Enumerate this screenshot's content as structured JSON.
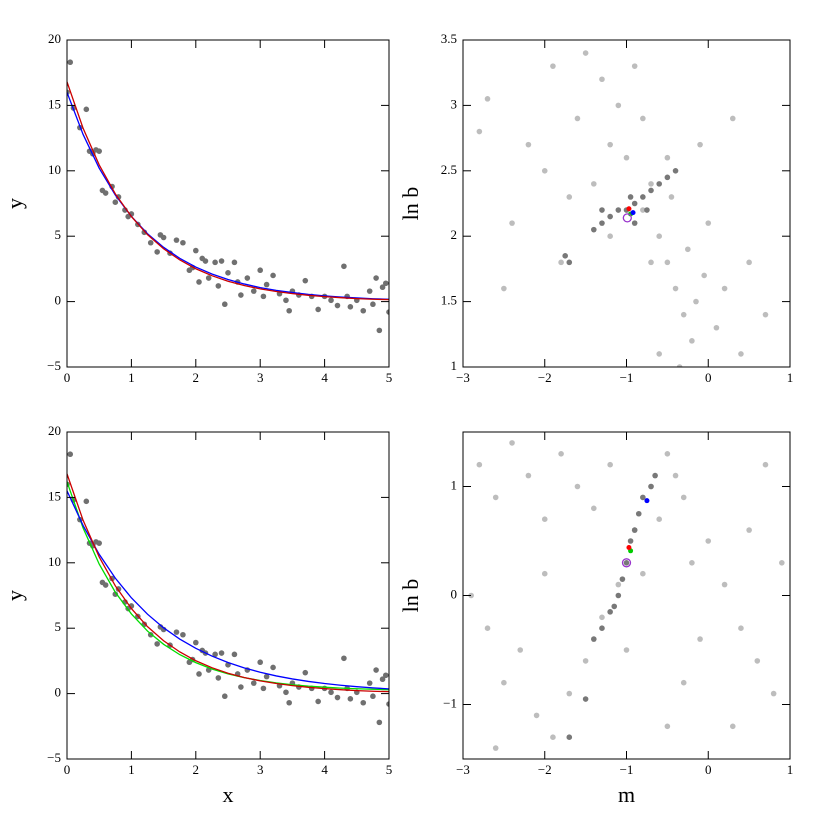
{
  "chart_data": [
    {
      "type": "scatter",
      "ylabel": "y",
      "xlim": [
        0,
        5
      ],
      "ylim": [
        -5,
        20
      ],
      "xticks": [
        0,
        1,
        2,
        3,
        4,
        5
      ],
      "yticks": [
        {
          "value": -5,
          "label": "−5"
        },
        0,
        5,
        10,
        15,
        20
      ],
      "series": [
        {
          "kind": "points",
          "color": "#707070",
          "x": [
            0.0,
            0.05,
            0.1,
            0.2,
            0.3,
            0.35,
            0.4,
            0.45,
            0.5,
            0.55,
            0.6,
            0.7,
            0.75,
            0.8,
            0.9,
            0.95,
            1.0,
            1.1,
            1.2,
            1.3,
            1.4,
            1.45,
            1.5,
            1.6,
            1.7,
            1.8,
            1.9,
            1.95,
            2.0,
            2.05,
            2.1,
            2.15,
            2.2,
            2.3,
            2.35,
            2.4,
            2.45,
            2.5,
            2.6,
            2.65,
            2.7,
            2.8,
            2.9,
            3.0,
            3.05,
            3.1,
            3.2,
            3.3,
            3.4,
            3.45,
            3.5,
            3.6,
            3.7,
            3.8,
            3.9,
            4.0,
            4.1,
            4.2,
            4.3,
            4.35,
            4.4,
            4.5,
            4.6,
            4.7,
            4.75,
            4.8,
            4.85,
            4.9,
            4.95,
            5.0
          ],
          "values": [
            16.0,
            18.3,
            14.8,
            13.3,
            14.7,
            11.5,
            11.3,
            11.6,
            11.5,
            8.5,
            8.3,
            8.8,
            7.6,
            8.0,
            7.0,
            6.5,
            6.7,
            5.9,
            5.3,
            4.5,
            3.8,
            5.1,
            4.9,
            3.7,
            4.7,
            4.5,
            2.4,
            2.6,
            3.9,
            1.5,
            3.3,
            3.1,
            1.8,
            3.0,
            1.2,
            3.1,
            -0.2,
            2.2,
            3.0,
            1.5,
            0.5,
            1.8,
            0.8,
            2.4,
            0.4,
            1.3,
            2.0,
            0.6,
            0.1,
            -0.7,
            0.8,
            0.5,
            1.6,
            0.4,
            -0.6,
            0.4,
            0.1,
            -0.3,
            2.7,
            0.4,
            -0.4,
            0.1,
            -0.7,
            0.8,
            -0.2,
            1.8,
            -2.2,
            1.1,
            1.4,
            -0.8
          ]
        },
        {
          "kind": "line",
          "color": "#0000ff",
          "x": [
            0,
            0.25,
            0.5,
            0.75,
            1,
            1.25,
            1.5,
            1.75,
            2,
            2.25,
            2.5,
            2.75,
            3,
            3.25,
            3.5,
            3.75,
            4,
            4.25,
            4.5,
            4.75,
            5
          ],
          "values": [
            16.0,
            12.78,
            10.2,
            8.15,
            6.51,
            5.19,
            4.15,
            3.31,
            2.64,
            2.11,
            1.69,
            1.35,
            1.07,
            0.86,
            0.69,
            0.55,
            0.44,
            0.35,
            0.28,
            0.22,
            0.18
          ]
        },
        {
          "kind": "line",
          "color": "#cc0000",
          "x": [
            0,
            0.25,
            0.5,
            0.75,
            1,
            1.25,
            1.5,
            1.75,
            2,
            2.25,
            2.5,
            2.75,
            3,
            3.25,
            3.5,
            3.75,
            4,
            4.25,
            4.5,
            4.75,
            5
          ],
          "values": [
            16.8,
            13.25,
            10.45,
            8.24,
            6.5,
            5.12,
            4.04,
            3.19,
            2.51,
            1.98,
            1.56,
            1.23,
            0.97,
            0.77,
            0.61,
            0.48,
            0.38,
            0.3,
            0.23,
            0.18,
            0.15
          ]
        }
      ]
    },
    {
      "type": "scatter",
      "ylabel": "ln b",
      "xlim": [
        -3,
        1
      ],
      "ylim": [
        1,
        3.5
      ],
      "xticks": [
        {
          "value": -3,
          "label": "−3"
        },
        {
          "value": -2,
          "label": "−2"
        },
        {
          "value": -1,
          "label": "−1"
        },
        0,
        1
      ],
      "yticks": [
        1,
        1.5,
        2,
        2.5,
        3,
        3.5
      ],
      "series": [
        {
          "kind": "points",
          "color": "#bdbdbd",
          "x": [
            -2.8,
            -2.7,
            -2.4,
            -2.2,
            -2.0,
            -1.9,
            -1.8,
            -1.6,
            -1.5,
            -1.4,
            -1.3,
            -1.2,
            -1.1,
            -1.0,
            -0.9,
            -0.8,
            -0.7,
            -0.6,
            -0.5,
            -0.45,
            -0.4,
            -0.3,
            -0.25,
            -0.2,
            -0.15,
            -0.1,
            -0.05,
            0.0,
            0.1,
            0.2,
            0.3,
            0.4,
            0.5,
            0.7,
            -0.6,
            -1.2,
            -0.8,
            -0.7,
            -0.5,
            -2.5,
            -1.7,
            -0.35
          ],
          "values": [
            2.8,
            3.05,
            2.1,
            2.7,
            2.5,
            3.3,
            1.8,
            2.9,
            3.4,
            2.4,
            3.2,
            2.7,
            3.0,
            2.6,
            3.3,
            2.9,
            2.4,
            2.0,
            1.8,
            2.3,
            1.6,
            1.4,
            1.9,
            1.2,
            1.5,
            2.7,
            1.7,
            2.1,
            1.3,
            1.6,
            2.9,
            1.1,
            1.8,
            1.4,
            1.1,
            2.0,
            2.2,
            1.8,
            2.6,
            1.6,
            2.3,
            1.0
          ]
        },
        {
          "kind": "points",
          "color": "#787878",
          "x": [
            -1.4,
            -1.3,
            -1.2,
            -1.1,
            -0.9,
            -0.8,
            -0.7,
            -0.6,
            -0.5,
            -0.4,
            -1.75,
            -1.7,
            -0.9,
            -1.0,
            -0.95,
            -0.75,
            -1.3
          ],
          "values": [
            2.05,
            2.1,
            2.15,
            2.2,
            2.25,
            2.3,
            2.35,
            2.4,
            2.45,
            2.5,
            1.85,
            1.8,
            2.1,
            2.2,
            2.3,
            2.2,
            2.2
          ]
        },
        {
          "kind": "points",
          "color": "#00cc00",
          "size": 5,
          "x": [
            -0.95
          ],
          "values": [
            2.17
          ]
        },
        {
          "kind": "points",
          "color": "#0000ff",
          "size": 5,
          "x": [
            -0.92
          ],
          "values": [
            2.18
          ]
        },
        {
          "kind": "points",
          "color": "#ff0000",
          "size": 5,
          "x": [
            -0.97
          ],
          "values": [
            2.21
          ]
        },
        {
          "kind": "points",
          "color": "#9933cc",
          "marker": "open-circle",
          "size": 8,
          "x": [
            -0.99
          ],
          "values": [
            2.14
          ]
        }
      ]
    },
    {
      "type": "scatter",
      "xlabel": "x",
      "ylabel": "y",
      "xlim": [
        0,
        5
      ],
      "ylim": [
        -5,
        20
      ],
      "xticks": [
        0,
        1,
        2,
        3,
        4,
        5
      ],
      "yticks": [
        {
          "value": -5,
          "label": "−5"
        },
        0,
        5,
        10,
        15,
        20
      ],
      "series": [
        {
          "kind": "points",
          "color": "#707070",
          "x": [
            0.0,
            0.05,
            0.1,
            0.2,
            0.3,
            0.35,
            0.4,
            0.45,
            0.5,
            0.55,
            0.6,
            0.7,
            0.75,
            0.8,
            0.9,
            0.95,
            1.0,
            1.1,
            1.2,
            1.3,
            1.4,
            1.45,
            1.5,
            1.6,
            1.7,
            1.8,
            1.9,
            1.95,
            2.0,
            2.05,
            2.1,
            2.15,
            2.2,
            2.3,
            2.35,
            2.4,
            2.45,
            2.5,
            2.6,
            2.65,
            2.7,
            2.8,
            2.9,
            3.0,
            3.05,
            3.1,
            3.2,
            3.3,
            3.4,
            3.45,
            3.5,
            3.6,
            3.7,
            3.8,
            3.9,
            4.0,
            4.1,
            4.2,
            4.3,
            4.35,
            4.4,
            4.5,
            4.6,
            4.7,
            4.75,
            4.8,
            4.85,
            4.9,
            4.95,
            5.0
          ],
          "values": [
            16.0,
            18.3,
            14.8,
            13.3,
            14.7,
            11.5,
            11.3,
            11.6,
            11.5,
            8.5,
            8.3,
            8.8,
            7.6,
            8.0,
            7.0,
            6.5,
            6.7,
            5.9,
            5.3,
            4.5,
            3.8,
            5.1,
            4.9,
            3.7,
            4.7,
            4.5,
            2.4,
            2.6,
            3.9,
            1.5,
            3.3,
            3.1,
            1.8,
            3.0,
            1.2,
            3.1,
            -0.2,
            2.2,
            3.0,
            1.5,
            0.5,
            1.8,
            0.8,
            2.4,
            0.4,
            1.3,
            2.0,
            0.6,
            0.1,
            -0.7,
            0.8,
            0.5,
            1.6,
            0.4,
            -0.6,
            0.4,
            0.1,
            -0.3,
            2.7,
            0.4,
            -0.4,
            0.1,
            -0.7,
            0.8,
            -0.2,
            1.8,
            -2.2,
            1.1,
            1.4,
            -0.8
          ]
        },
        {
          "kind": "line",
          "color": "#00dd00",
          "x": [
            0,
            0.25,
            0.5,
            0.75,
            1,
            1.25,
            1.5,
            1.75,
            2,
            2.25,
            2.5,
            2.75,
            3,
            3.25,
            3.5,
            3.75,
            4,
            4.25,
            4.5,
            4.75,
            5
          ],
          "values": [
            16.2,
            12.66,
            9.9,
            7.75,
            6.09,
            4.78,
            3.77,
            2.98,
            2.37,
            1.88,
            1.51,
            1.22,
            1.0,
            0.82,
            0.68,
            0.57,
            0.49,
            0.42,
            0.37,
            0.33,
            0.3
          ]
        },
        {
          "kind": "line",
          "color": "#0000ff",
          "x": [
            0,
            0.25,
            0.5,
            0.75,
            1,
            1.25,
            1.5,
            1.75,
            2,
            2.25,
            2.5,
            2.75,
            3,
            3.25,
            3.5,
            3.75,
            4,
            4.25,
            4.5,
            4.75,
            5
          ],
          "values": [
            15.5,
            12.85,
            10.65,
            8.83,
            7.32,
            6.07,
            5.03,
            4.17,
            3.46,
            2.87,
            2.38,
            1.97,
            1.63,
            1.35,
            1.12,
            0.93,
            0.77,
            0.64,
            0.53,
            0.44,
            0.36
          ]
        },
        {
          "kind": "line",
          "color": "#cc0000",
          "x": [
            0,
            0.25,
            0.5,
            0.75,
            1,
            1.25,
            1.5,
            1.75,
            2,
            2.25,
            2.5,
            2.75,
            3,
            3.25,
            3.5,
            3.75,
            4,
            4.25,
            4.5,
            4.75,
            5
          ],
          "values": [
            16.8,
            13.25,
            10.45,
            8.24,
            6.5,
            5.12,
            4.04,
            3.19,
            2.51,
            1.98,
            1.56,
            1.23,
            0.97,
            0.77,
            0.61,
            0.48,
            0.38,
            0.3,
            0.23,
            0.18,
            0.15
          ]
        }
      ]
    },
    {
      "type": "scatter",
      "xlabel": "m",
      "ylabel": "ln b",
      "xlim": [
        -3,
        1
      ],
      "ylim": [
        -1.5,
        1.5
      ],
      "xticks": [
        {
          "value": -3,
          "label": "−3"
        },
        {
          "value": -2,
          "label": "−2"
        },
        {
          "value": -1,
          "label": "−1"
        },
        0,
        1
      ],
      "yticks": [
        {
          "value": -1,
          "label": "−1"
        },
        0,
        1
      ],
      "series": [
        {
          "kind": "points",
          "color": "#bdbdbd",
          "x": [
            -2.8,
            -2.6,
            -2.4,
            -2.2,
            -2.0,
            -1.8,
            -1.6,
            -1.4,
            -1.2,
            -2.9,
            -2.7,
            -2.5,
            -2.3,
            -2.1,
            -1.9,
            -1.7,
            -1.5,
            -1.3,
            -1.1,
            -0.9,
            -0.7,
            -0.5,
            -0.6,
            -0.4,
            -0.3,
            -0.2,
            0.0,
            0.2,
            0.4,
            0.6,
            0.8,
            0.5,
            0.7,
            0.9,
            -0.1,
            -0.3,
            -0.5,
            -2.6,
            -2.0,
            -1.0,
            0.3,
            -0.8
          ],
          "values": [
            1.2,
            0.9,
            1.4,
            1.1,
            0.7,
            1.3,
            1.0,
            0.8,
            1.2,
            0.0,
            -0.3,
            -0.8,
            -0.5,
            -1.1,
            -1.3,
            -0.9,
            -0.6,
            -0.2,
            0.1,
            0.6,
            1.0,
            1.3,
            0.7,
            1.1,
            0.9,
            0.3,
            0.5,
            0.1,
            -0.3,
            -0.6,
            -0.9,
            0.6,
            1.2,
            0.3,
            -0.4,
            -0.8,
            -1.2,
            -1.4,
            0.2,
            -0.5,
            -1.2,
            0.2
          ]
        },
        {
          "kind": "points",
          "color": "#787878",
          "x": [
            -1.7,
            -1.5,
            -1.4,
            -1.3,
            -1.2,
            -1.1,
            -1.05,
            -1.0,
            -0.95,
            -0.9,
            -0.85,
            -0.8,
            -0.7,
            -0.65,
            -1.15
          ],
          "values": [
            -1.3,
            -0.95,
            -0.4,
            -0.3,
            -0.15,
            0.0,
            0.15,
            0.3,
            0.5,
            0.6,
            0.75,
            0.9,
            1.0,
            1.1,
            -0.1
          ]
        },
        {
          "kind": "points",
          "color": "#00cc00",
          "size": 5,
          "x": [
            -0.95
          ],
          "values": [
            0.41
          ]
        },
        {
          "kind": "points",
          "color": "#0000ff",
          "size": 5,
          "x": [
            -0.75
          ],
          "values": [
            0.87
          ]
        },
        {
          "kind": "points",
          "color": "#ff0000",
          "size": 5,
          "x": [
            -0.97
          ],
          "values": [
            0.44
          ]
        },
        {
          "kind": "points",
          "color": "#9933cc",
          "marker": "open-circle",
          "size": 8,
          "x": [
            -1.0
          ],
          "values": [
            0.3
          ]
        }
      ]
    }
  ]
}
